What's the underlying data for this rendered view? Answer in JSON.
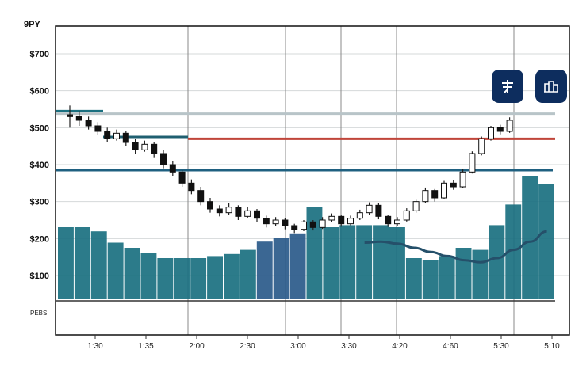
{
  "chart_data": {
    "type": "candlestick",
    "title": "",
    "corner_label": "9PY",
    "bottom_corner_label": "PEBS",
    "xlabel": "",
    "ylabel": "",
    "ylim": [
      100,
      700
    ],
    "yticks": [
      700,
      600,
      500,
      400,
      300,
      200,
      100
    ],
    "ytick_labels": [
      "$700",
      "$600",
      "$500",
      "$400",
      "$300",
      "$200",
      "$100"
    ],
    "xtick_labels": [
      "1:30",
      "1:35",
      "2:00",
      "2:30",
      "3:00",
      "3:30",
      "4:20",
      "4:60",
      "5:30",
      "5:10"
    ],
    "grid": true,
    "candles": [
      [
        535,
        560,
        500,
        530
      ],
      [
        530,
        545,
        505,
        520
      ],
      [
        520,
        530,
        495,
        505
      ],
      [
        505,
        515,
        480,
        490
      ],
      [
        490,
        500,
        460,
        470
      ],
      [
        470,
        495,
        465,
        485
      ],
      [
        485,
        490,
        450,
        460
      ],
      [
        460,
        470,
        430,
        440
      ],
      [
        440,
        465,
        435,
        455
      ],
      [
        455,
        460,
        420,
        430
      ],
      [
        430,
        440,
        390,
        400
      ],
      [
        400,
        410,
        370,
        380
      ],
      [
        380,
        385,
        340,
        350
      ],
      [
        350,
        360,
        320,
        330
      ],
      [
        330,
        340,
        290,
        300
      ],
      [
        300,
        310,
        270,
        280
      ],
      [
        280,
        290,
        260,
        270
      ],
      [
        270,
        295,
        265,
        285
      ],
      [
        285,
        290,
        250,
        260
      ],
      [
        260,
        285,
        255,
        275
      ],
      [
        275,
        280,
        245,
        255
      ],
      [
        255,
        262,
        230,
        240
      ],
      [
        240,
        258,
        235,
        250
      ],
      [
        250,
        255,
        225,
        235
      ],
      [
        235,
        240,
        215,
        225
      ],
      [
        225,
        250,
        220,
        245
      ],
      [
        245,
        250,
        222,
        230
      ],
      [
        230,
        258,
        226,
        250
      ],
      [
        250,
        268,
        245,
        260
      ],
      [
        260,
        265,
        232,
        240
      ],
      [
        240,
        262,
        236,
        255
      ],
      [
        255,
        278,
        250,
        270
      ],
      [
        270,
        298,
        265,
        290
      ],
      [
        290,
        295,
        252,
        260
      ],
      [
        260,
        265,
        232,
        240
      ],
      [
        240,
        258,
        235,
        250
      ],
      [
        250,
        282,
        246,
        275
      ],
      [
        275,
        305,
        270,
        300
      ],
      [
        300,
        338,
        296,
        330
      ],
      [
        330,
        334,
        300,
        310
      ],
      [
        310,
        356,
        306,
        350
      ],
      [
        350,
        358,
        332,
        340
      ],
      [
        340,
        388,
        336,
        380
      ],
      [
        380,
        436,
        376,
        430
      ],
      [
        430,
        476,
        425,
        470
      ],
      [
        470,
        505,
        465,
        500
      ],
      [
        500,
        508,
        482,
        490
      ],
      [
        490,
        528,
        486,
        520
      ]
    ],
    "reference_lines": [
      {
        "name": "resistance-line",
        "value": 545,
        "color": "#1a7080"
      },
      {
        "name": "upper-band",
        "value": 538,
        "color": "#b8c4c8"
      },
      {
        "name": "signal-line",
        "value": 470,
        "color": "#c0453a"
      },
      {
        "name": "short-line",
        "value": 475,
        "color": "#1f5f70"
      },
      {
        "name": "support-line",
        "value": 385,
        "color": "#1f6080"
      }
    ],
    "volume": {
      "ylim": [
        0,
        120
      ],
      "values": [
        70,
        70,
        66,
        55,
        50,
        45,
        40,
        40,
        40,
        42,
        44,
        48,
        56,
        60,
        64,
        90,
        70,
        72,
        72,
        72,
        70,
        40,
        38,
        42,
        50,
        48,
        72,
        92,
        120,
        112
      ]
    },
    "trend": {
      "start_index": 18,
      "values": [
        55,
        56,
        54,
        50,
        46,
        42,
        38,
        36,
        40,
        48,
        56,
        66
      ]
    },
    "colors": {
      "volume": "#1a7080",
      "volume_alt": "#2a5a8a",
      "candle_up": "#1a1a1a",
      "candle_down": "#111111",
      "trend": "#25506a",
      "button": "#0d2d5e"
    }
  },
  "toolbar": {
    "buttons": [
      {
        "icon": "indicator-icon"
      },
      {
        "icon": "compare-icon"
      }
    ]
  }
}
